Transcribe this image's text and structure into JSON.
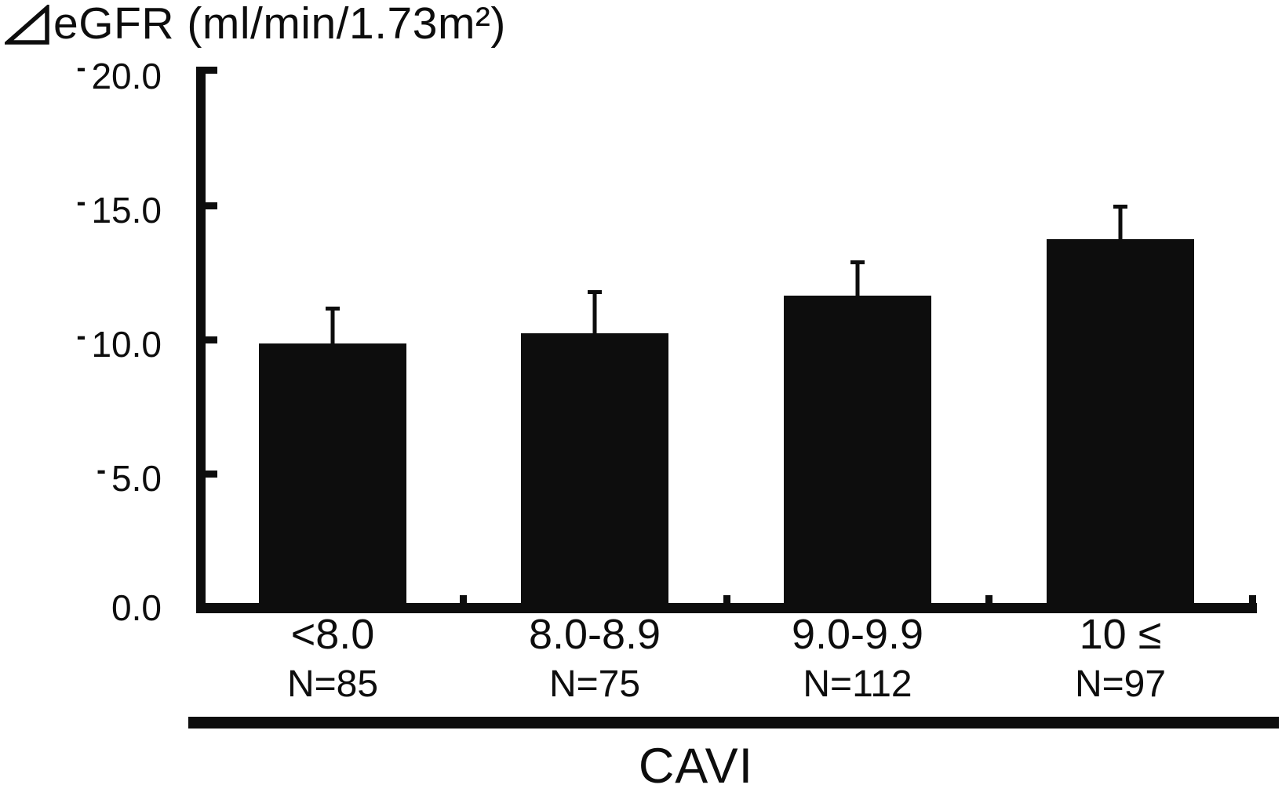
{
  "page": {
    "background": "#ffffff",
    "ink": "#0d0d0d"
  },
  "title": {
    "full": "⊿eGFR (ml/min/1.73m²)",
    "symbol": "⊿",
    "text": "eGFR (ml/min/1.73m²)"
  },
  "y_axis": {
    "tick_labels": [
      {
        "minus": "-",
        "number": "20.0"
      },
      {
        "minus": "-",
        "number": "15.0"
      },
      {
        "minus": "-",
        "number": "10.0"
      },
      {
        "minus": "-",
        "number": "5.0"
      },
      {
        "minus": "",
        "number": "0.0"
      }
    ]
  },
  "x_axis": {
    "label": "CAVI"
  },
  "chart_data": {
    "type": "bar",
    "title": "⊿eGFR (ml/min/1.73m²)",
    "ylabel": "⊿eGFR (ml/min/1.73m²)",
    "xlabel": "CAVI",
    "categories": [
      "<8.0",
      "8.0-8.9",
      "9.0-9.9",
      "10 ≤"
    ],
    "group_sizes": [
      "N=85",
      "N=75",
      "N=112",
      "N=97"
    ],
    "values": [
      -9.9,
      -10.3,
      -11.7,
      -13.8
    ],
    "error_upper": [
      1.4,
      1.6,
      1.3,
      1.3
    ],
    "ylim": [
      0,
      -20
    ],
    "y_ticks": [
      "0.0",
      "-5.0",
      "-10.0",
      "-15.0",
      "-20.0"
    ],
    "y_axis_note": "0.0 at bottom, -20.0 at top (decline plotted upward)",
    "bar_color": "#0d0d0d",
    "grid": false,
    "legend": "none",
    "orientation": "vertical"
  }
}
